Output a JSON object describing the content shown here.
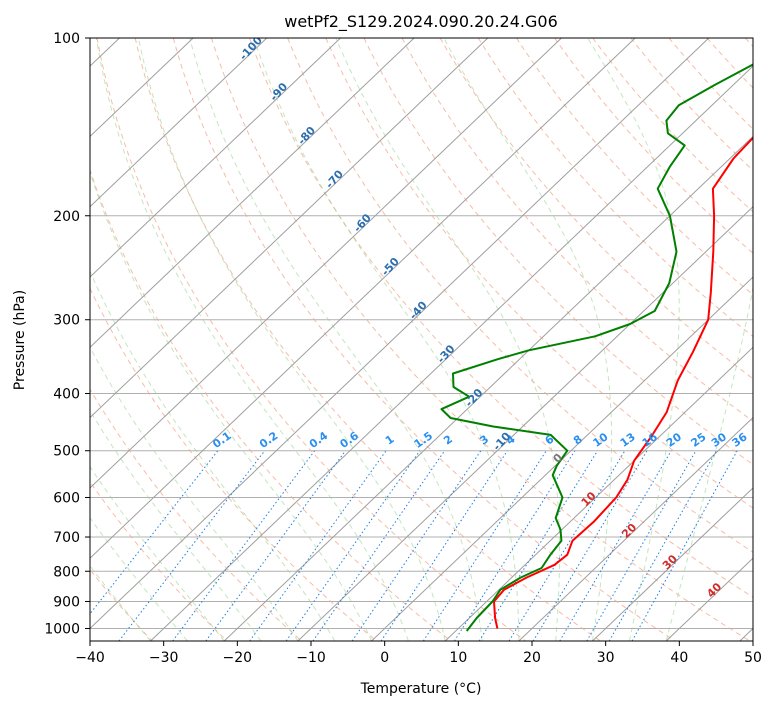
{
  "chart_data": {
    "type": "line",
    "title": "wetPf2_S129.2024.090.20.24.G06",
    "xlabel": "Temperature (°C)",
    "ylabel": "Pressure (hPa)",
    "xlim": [
      -40,
      50
    ],
    "ylim": [
      1050,
      100
    ],
    "y_scale": "log",
    "grid": true,
    "x_ticks": [
      -40,
      -30,
      -20,
      -10,
      0,
      10,
      20,
      30,
      40,
      50
    ],
    "y_ticks": [
      100,
      200,
      300,
      400,
      500,
      600,
      700,
      800,
      900,
      1000
    ],
    "skew_deg_per_log10_p": 84,
    "isotherm_labels": [
      "-100",
      "-90",
      "-80",
      "-70",
      "-60",
      "-50",
      "-40",
      "-30",
      "-20",
      "-10"
    ],
    "mixing_ratio_labels": [
      "0.1",
      "0.2",
      "0.4",
      "0.6",
      "1",
      "1.5",
      "2",
      "3",
      "4",
      "6",
      "8",
      "10",
      "13",
      "16",
      "20",
      "25",
      "30",
      "36"
    ],
    "dry_adiabat_labels": [
      "0",
      "10",
      "20",
      "30",
      "40"
    ],
    "series": [
      {
        "name": "",
        "color": "#ff0000",
        "points": [
          {
            "p": 1000,
            "t": 15.3
          },
          {
            "p": 960,
            "t": 13.5
          },
          {
            "p": 900,
            "t": 11.0
          },
          {
            "p": 860,
            "t": 10.7
          },
          {
            "p": 820,
            "t": 12.0
          },
          {
            "p": 780,
            "t": 14.0
          },
          {
            "p": 750,
            "t": 14.3
          },
          {
            "p": 710,
            "t": 13.0
          },
          {
            "p": 660,
            "t": 13.2
          },
          {
            "p": 600,
            "t": 12.8
          },
          {
            "p": 560,
            "t": 11.8
          },
          {
            "p": 520,
            "t": 10.0
          },
          {
            "p": 470,
            "t": 8.8
          },
          {
            "p": 430,
            "t": 7.5
          },
          {
            "p": 380,
            "t": 4.5
          },
          {
            "p": 340,
            "t": 2.5
          },
          {
            "p": 300,
            "t": 0.0
          },
          {
            "p": 270,
            "t": -3.5
          },
          {
            "p": 230,
            "t": -9.0
          },
          {
            "p": 200,
            "t": -14.0
          },
          {
            "p": 180,
            "t": -18.0
          },
          {
            "p": 160,
            "t": -19.5
          },
          {
            "p": 140,
            "t": -20.0
          },
          {
            "p": 125,
            "t": -19.5
          },
          {
            "p": 112,
            "t": -17.0
          },
          {
            "p": 100,
            "t": -13.5
          }
        ]
      },
      {
        "name": "",
        "color": "#008000",
        "points": [
          {
            "p": 1010,
            "t": 11.5
          },
          {
            "p": 960,
            "t": 11.0
          },
          {
            "p": 900,
            "t": 10.8
          },
          {
            "p": 860,
            "t": 10.2
          },
          {
            "p": 820,
            "t": 11.2
          },
          {
            "p": 790,
            "t": 12.7
          },
          {
            "p": 750,
            "t": 12.0
          },
          {
            "p": 710,
            "t": 11.5
          },
          {
            "p": 680,
            "t": 9.8
          },
          {
            "p": 650,
            "t": 7.5
          },
          {
            "p": 600,
            "t": 5.5
          },
          {
            "p": 550,
            "t": 1.0
          },
          {
            "p": 530,
            "t": 0.2
          },
          {
            "p": 500,
            "t": -0.5
          },
          {
            "p": 470,
            "t": -5.0
          },
          {
            "p": 455,
            "t": -14.0
          },
          {
            "p": 440,
            "t": -21.0
          },
          {
            "p": 425,
            "t": -23.5
          },
          {
            "p": 405,
            "t": -21.5
          },
          {
            "p": 390,
            "t": -25.0
          },
          {
            "p": 370,
            "t": -27.0
          },
          {
            "p": 350,
            "t": -23.0
          },
          {
            "p": 338,
            "t": -20.0
          },
          {
            "p": 320,
            "t": -13.0
          },
          {
            "p": 305,
            "t": -10.0
          },
          {
            "p": 290,
            "t": -8.5
          },
          {
            "p": 260,
            "t": -10.5
          },
          {
            "p": 230,
            "t": -14.0
          },
          {
            "p": 200,
            "t": -20.0
          },
          {
            "p": 180,
            "t": -25.5
          },
          {
            "p": 165,
            "t": -27.0
          },
          {
            "p": 152,
            "t": -28.0
          },
          {
            "p": 145,
            "t": -32.0
          },
          {
            "p": 138,
            "t": -34.0
          },
          {
            "p": 130,
            "t": -34.5
          },
          {
            "p": 120,
            "t": -32.5
          },
          {
            "p": 110,
            "t": -30.0
          },
          {
            "p": 100,
            "t": -28.0
          }
        ]
      }
    ]
  }
}
